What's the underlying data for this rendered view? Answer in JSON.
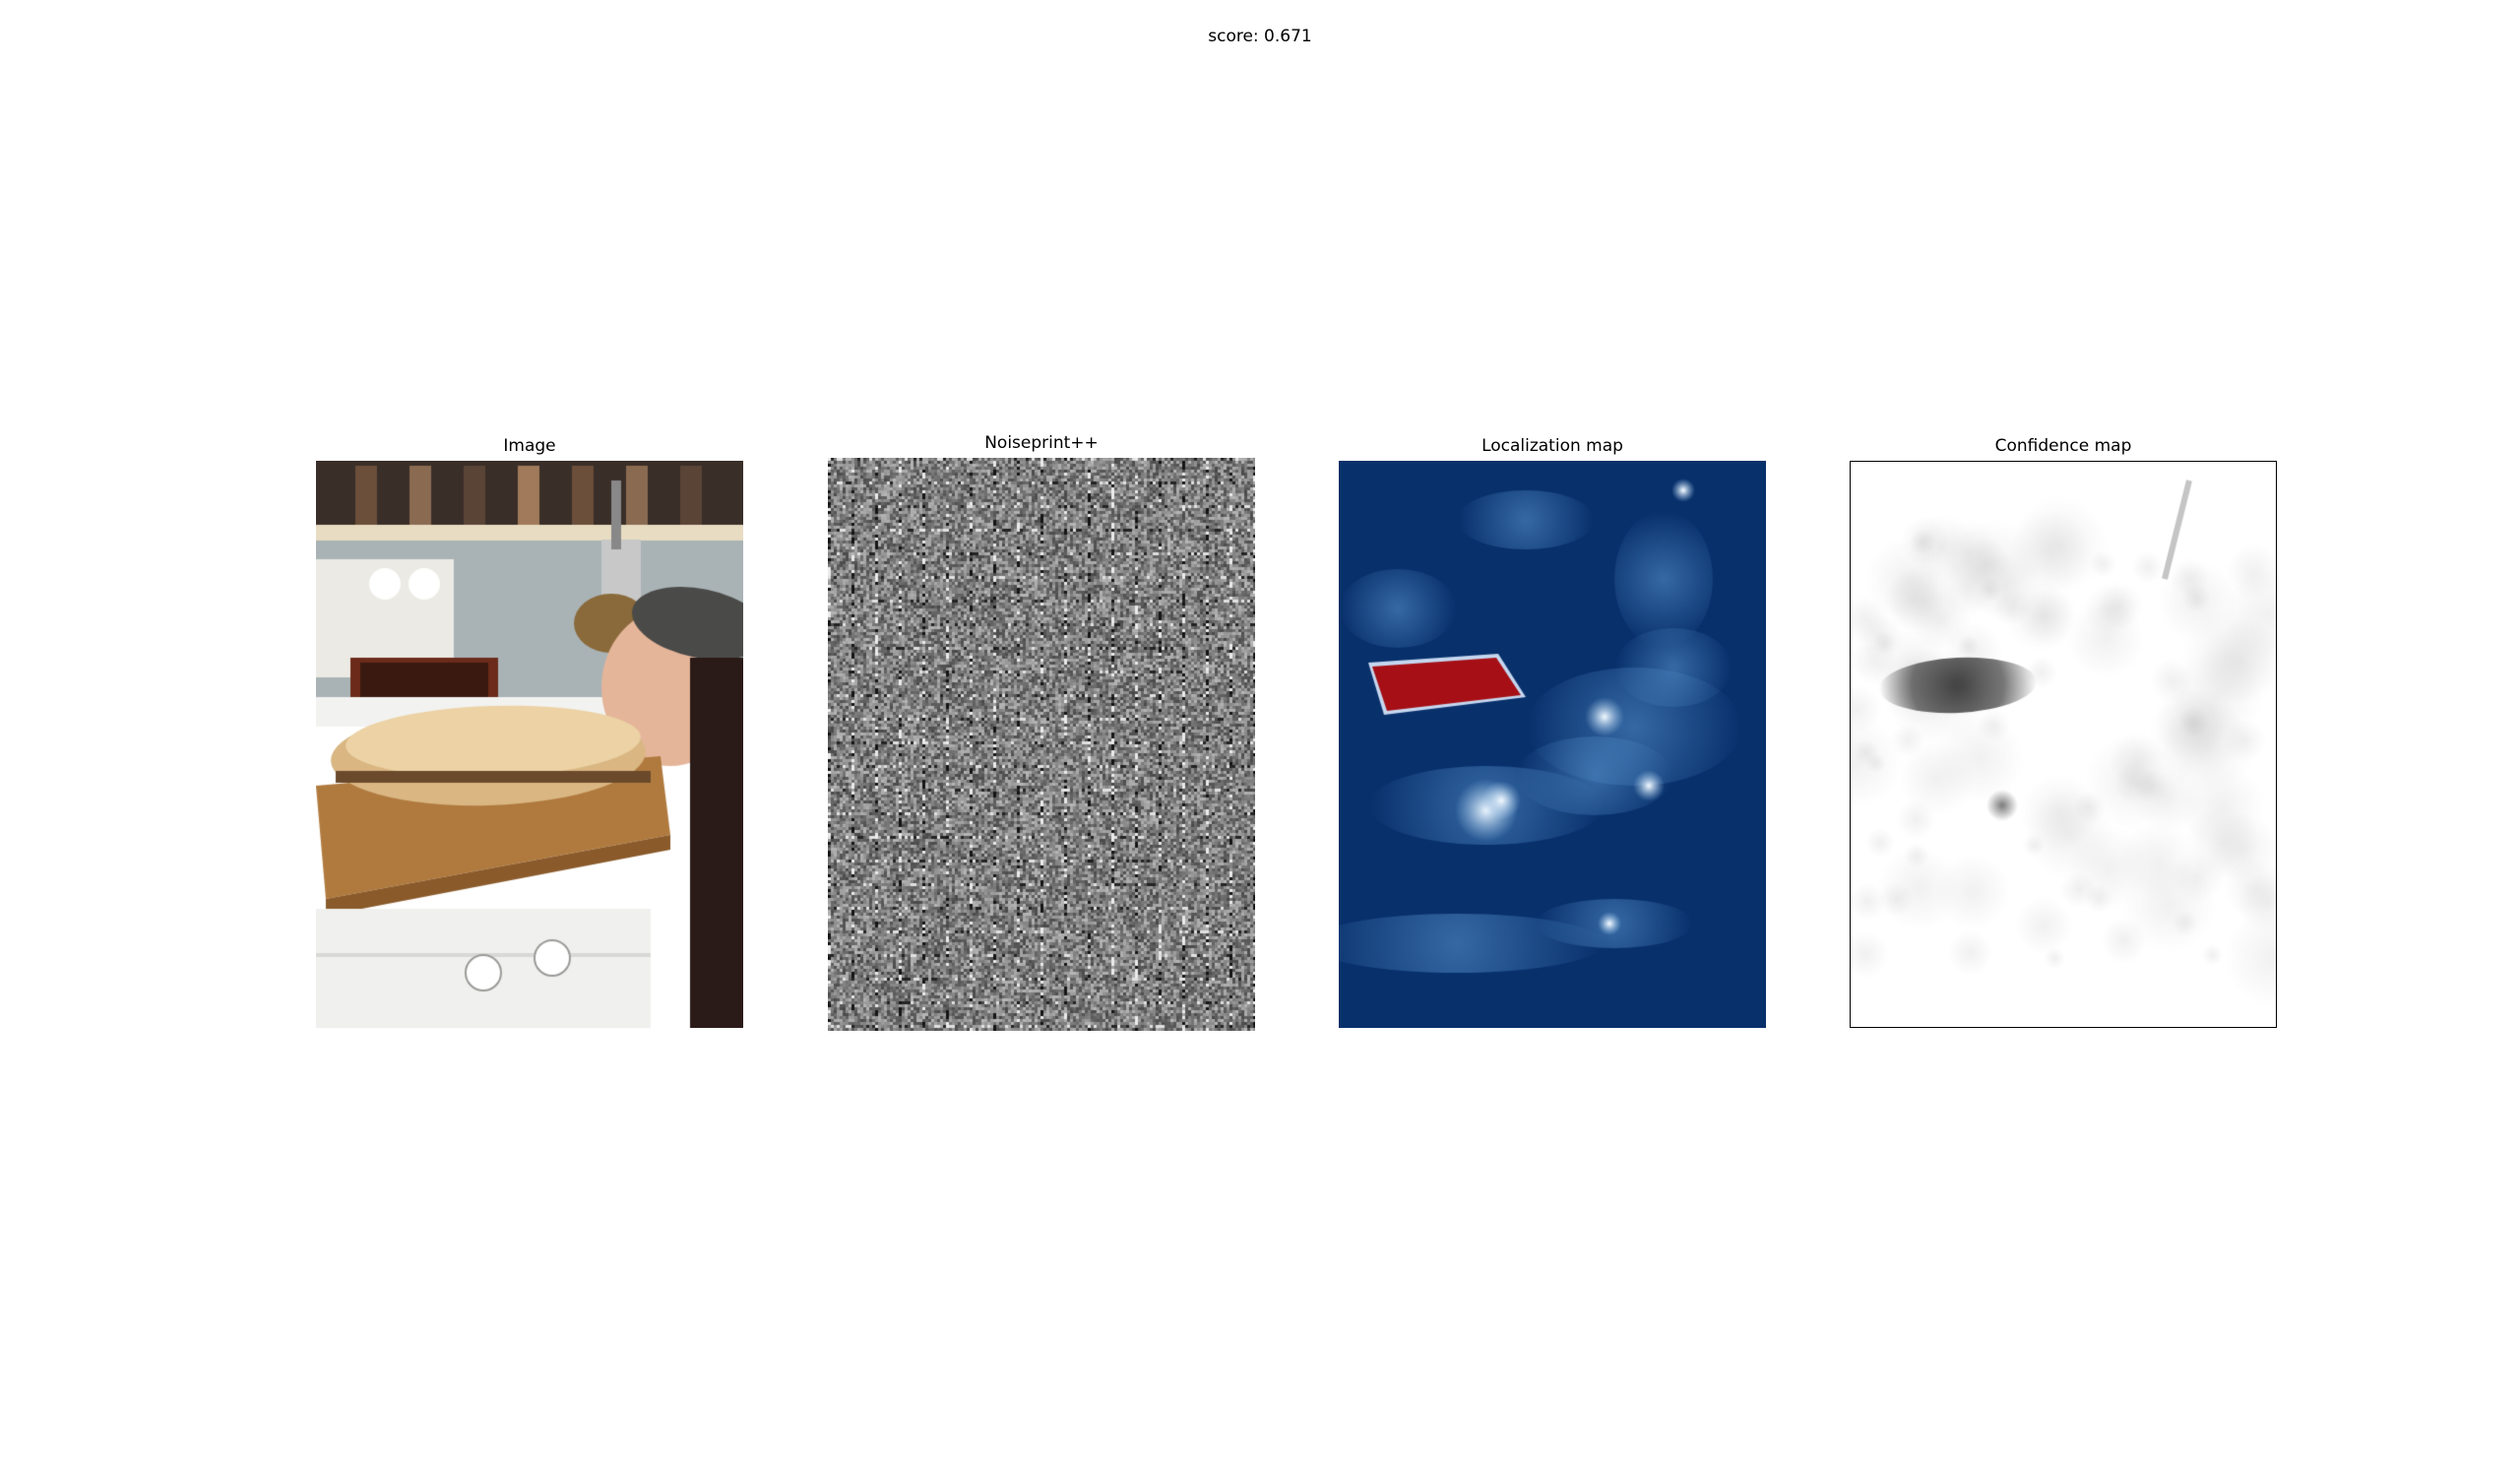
{
  "figure": {
    "suptitle": "score: 0.671"
  },
  "panels": [
    {
      "title": "Image",
      "kind": "photo"
    },
    {
      "title": "Noiseprint++",
      "kind": "noise"
    },
    {
      "title": "Localization map",
      "kind": "heatmap"
    },
    {
      "title": "Confidence map",
      "kind": "confidence"
    }
  ],
  "colors": {
    "background": "#ffffff",
    "heatmap_low": "#08306b",
    "heatmap_high": "#a50f15",
    "confidence_background": "#ffffff"
  }
}
